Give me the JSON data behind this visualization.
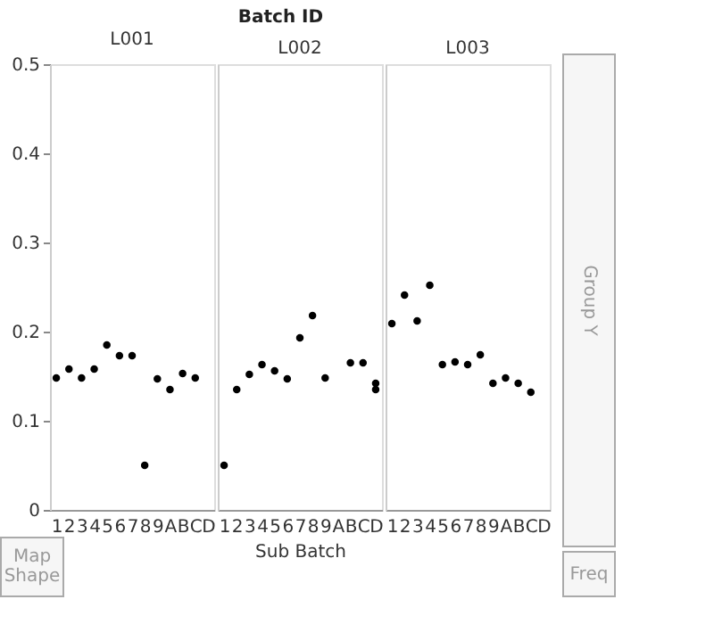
{
  "chart_data": {
    "type": "scatter",
    "title": "Batch ID",
    "xlabel": "Sub Batch",
    "categories": [
      "1",
      "2",
      "3",
      "4",
      "5",
      "6",
      "7",
      "8",
      "9",
      "A",
      "B",
      "C",
      "D",
      "1",
      "2",
      "3",
      "4",
      "5",
      "6",
      "7",
      "8",
      "9",
      "A",
      "B",
      "C",
      "D",
      "1",
      "2",
      "3",
      "4",
      "5",
      "6",
      "7",
      "8",
      "9",
      "A",
      "B",
      "C",
      "D"
    ],
    "series": [
      {
        "color": "#000000",
        "values": [
          0.148,
          0.158,
          0.148,
          0.158,
          0.185,
          0.173,
          0.173,
          0.05,
          0.147,
          0.135,
          0.153,
          0.148,
          null,
          0.05,
          0.135,
          0.152,
          0.163,
          0.156,
          0.147,
          0.193,
          0.218,
          0.148,
          null,
          0.165,
          0.165,
          0.142,
          0.209,
          0.241,
          0.212,
          0.252,
          0.163,
          0.166,
          0.163,
          0.174,
          0.142,
          0.148,
          0.142,
          0.132,
          null
        ]
      },
      {
        "color": "#000000",
        "values": [
          null,
          null,
          null,
          null,
          null,
          null,
          null,
          null,
          null,
          null,
          null,
          null,
          null,
          null,
          null,
          null,
          null,
          null,
          null,
          null,
          null,
          null,
          null,
          null,
          null,
          0.135,
          null,
          null,
          null,
          null,
          null,
          null,
          null,
          null,
          null,
          null,
          null,
          null,
          null
        ]
      }
    ],
    "ylim": [
      0,
      0.5
    ],
    "yticks": [
      0,
      0.1,
      0.2,
      0.3,
      0.4,
      0.5
    ],
    "annotations": [
      "L001",
      "L002",
      "L003",
      "Map Shape",
      "Group Y",
      "Freq"
    ],
    "marker": "circle",
    "grid": false,
    "legend": false
  }
}
